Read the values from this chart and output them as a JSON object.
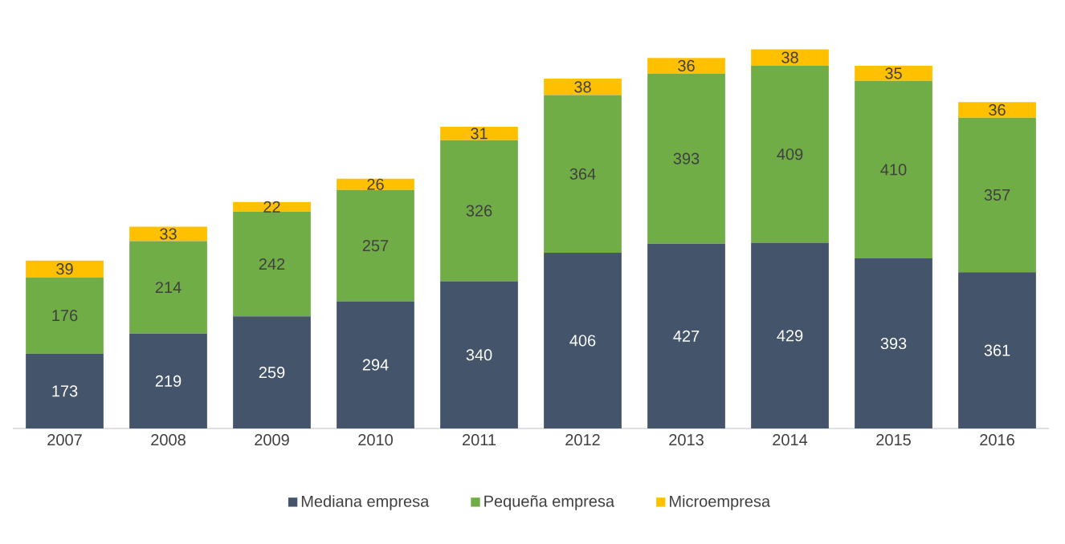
{
  "chart_data": {
    "type": "bar",
    "stacked": true,
    "data_labels": true,
    "legend": "bottom",
    "categories": [
      "2007",
      "2008",
      "2009",
      "2010",
      "2011",
      "2012",
      "2013",
      "2014",
      "2015",
      "2016"
    ],
    "series": [
      {
        "name": "Mediana empresa",
        "color": "#44546a",
        "values": [
          173,
          219,
          259,
          294,
          340,
          406,
          427,
          429,
          393,
          361
        ]
      },
      {
        "name": "Pequeña empresa",
        "color": "#70ad47",
        "values": [
          176,
          214,
          242,
          257,
          326,
          364,
          393,
          409,
          410,
          357
        ]
      },
      {
        "name": "Microempresa",
        "color": "#ffc000",
        "values": [
          39,
          33,
          22,
          26,
          31,
          38,
          36,
          38,
          35,
          36
        ]
      }
    ]
  }
}
